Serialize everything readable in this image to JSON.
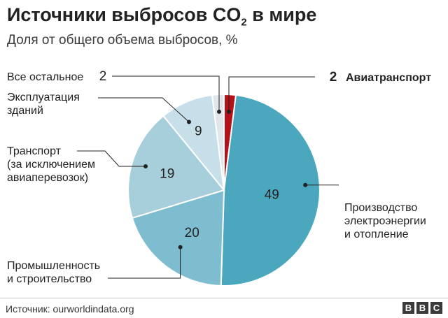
{
  "header": {
    "title_main": "Источники выбросов CO",
    "title_sub": "2",
    "title_end": " в мире",
    "subtitle": "Доля от общего объема выбросов, %"
  },
  "chart_data": {
    "type": "pie",
    "title": "Источники выбросов CO2 в мире",
    "subtitle": "Доля от общего объема выбросов, %",
    "unit": "%",
    "slices": [
      {
        "label": "Авиатранспорт",
        "value": 2,
        "color": "#b3121b",
        "label_lines": [
          "Авиатранспорт"
        ]
      },
      {
        "label": "Производство электроэнергии и отопление",
        "value": 49,
        "color": "#4aa7be",
        "label_lines": [
          "Производство",
          "электроэнергии",
          "и отопление"
        ]
      },
      {
        "label": "Промышленность и строительство",
        "value": 20,
        "color": "#7ebdcf",
        "label_lines": [
          "Промышленность",
          "и строительство"
        ]
      },
      {
        "label": "Транспорт (за исключением авиаперевозок)",
        "value": 19,
        "color": "#a6cedb",
        "label_lines": [
          "Транспорт",
          "(за исключением",
          "авиаперевозок)"
        ]
      },
      {
        "label": "Эксплуатация зданий",
        "value": 9,
        "color": "#c6dfe8",
        "label_lines": [
          "Эксплуатация",
          "зданий"
        ]
      },
      {
        "label": "Все остальное",
        "value": 2,
        "color": "#e0e6e9",
        "label_lines": [
          "Все остальное"
        ]
      }
    ]
  },
  "footer": {
    "source": "Источник: ourworldindata.org",
    "logo_letters": [
      "B",
      "B",
      "C"
    ]
  }
}
